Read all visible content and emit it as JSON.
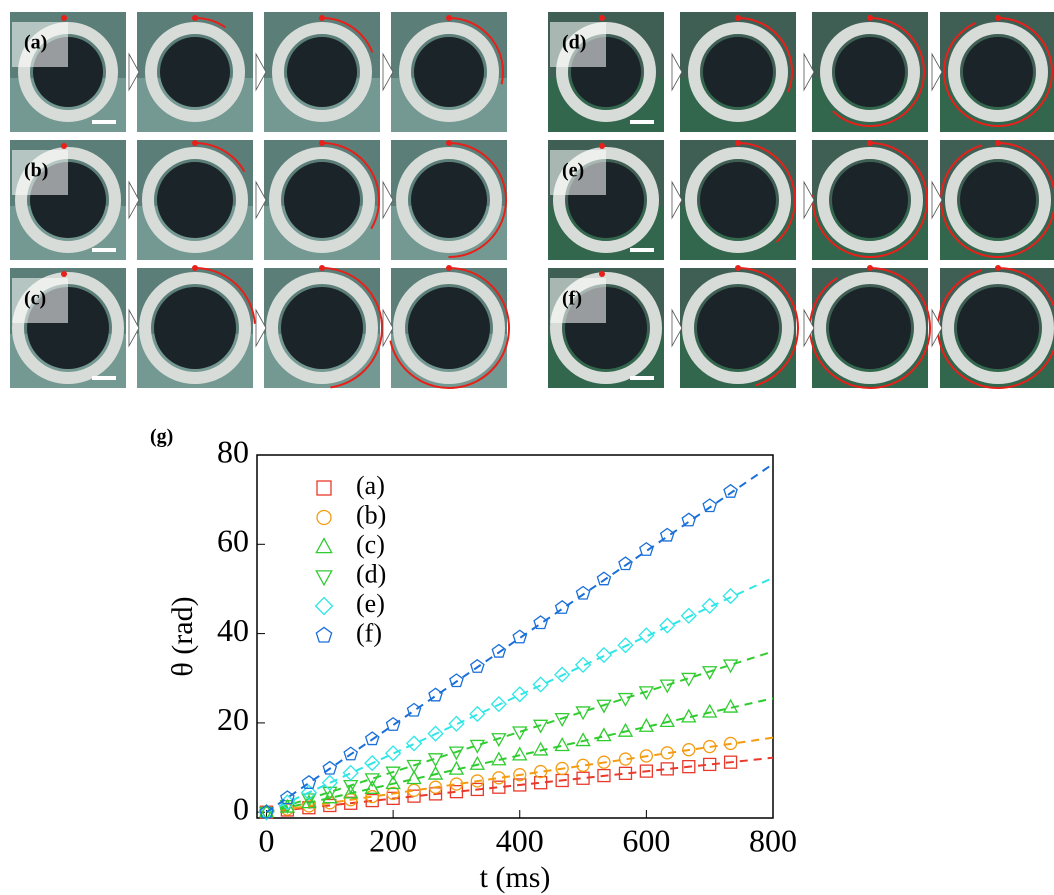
{
  "panels": {
    "labels": [
      "(a)",
      "(b)",
      "(c)",
      "(d)",
      "(e)",
      "(f)"
    ]
  },
  "chart_data": {
    "type": "scatter",
    "label": "(g)",
    "xlabel": "t (ms)",
    "ylabel": "θ (rad)",
    "xlim": [
      -15,
      800
    ],
    "ylim": [
      -1.3,
      80
    ],
    "xticks": [
      0,
      200,
      400,
      600,
      800
    ],
    "yticks": [
      0,
      20,
      40,
      60,
      80
    ],
    "x": [
      0,
      33,
      67,
      100,
      133,
      167,
      200,
      233,
      267,
      300,
      333,
      367,
      400,
      433,
      467,
      500,
      533,
      567,
      600,
      633,
      667,
      700,
      733
    ],
    "series": [
      {
        "name": "(a)",
        "color": "#e8392b",
        "marker": "square",
        "values": [
          0,
          0.5,
          1,
          1.5,
          2,
          2.6,
          3.1,
          3.6,
          4.1,
          4.6,
          5.1,
          5.6,
          6.1,
          6.6,
          7.1,
          7.6,
          8.2,
          8.7,
          9.2,
          9.7,
          10.2,
          10.7,
          11.2
        ],
        "fit_x": [
          0,
          800
        ],
        "fit_values": [
          0,
          12.2
        ]
      },
      {
        "name": "(b)",
        "color": "#f39c12",
        "marker": "circle",
        "values": [
          0,
          0.7,
          1.4,
          2.1,
          2.8,
          3.5,
          4.2,
          4.9,
          5.6,
          6.3,
          7,
          7.7,
          8.4,
          9.1,
          9.8,
          10.5,
          11.2,
          11.9,
          12.6,
          13.3,
          14,
          14.7,
          15.4
        ],
        "fit_x": [
          0,
          800
        ],
        "fit_values": [
          0,
          16.7
        ]
      },
      {
        "name": "(c)",
        "color": "#2ecc2e",
        "marker": "triangle-up",
        "values": [
          0,
          1.1,
          2.1,
          3.2,
          4.3,
          5.3,
          6.4,
          7.5,
          8.5,
          9.6,
          10.7,
          11.7,
          12.8,
          13.9,
          14.9,
          16,
          17.1,
          18.1,
          19.2,
          20.3,
          21.3,
          22.4,
          23.5
        ],
        "fit_x": [
          0,
          800
        ],
        "fit_values": [
          0,
          25.5
        ]
      },
      {
        "name": "(d)",
        "color": "#33cc33",
        "marker": "triangle-down",
        "values": [
          0,
          1.5,
          3,
          4.5,
          6,
          7.5,
          9,
          10.5,
          12,
          13.5,
          15,
          16.5,
          18,
          19.5,
          21,
          22.5,
          24,
          25.5,
          27,
          28.5,
          30,
          31.5,
          33
        ],
        "fit_x": [
          0,
          800
        ],
        "fit_values": [
          0,
          36
        ]
      },
      {
        "name": "(e)",
        "color": "#2ee6e6",
        "marker": "diamond",
        "values": [
          0,
          2.2,
          4.4,
          6.6,
          8.8,
          11,
          13.2,
          15.4,
          17.6,
          19.8,
          22,
          24.2,
          26.4,
          28.6,
          30.8,
          33,
          35.2,
          37.4,
          39.6,
          41.8,
          44,
          46.2,
          48.4
        ],
        "fit_x": [
          0,
          800
        ],
        "fit_values": [
          0,
          52.5
        ]
      },
      {
        "name": "(f)",
        "color": "#1a6fd9",
        "marker": "pentagon",
        "values": [
          0,
          3.2,
          6.6,
          9.8,
          13,
          16.4,
          19.6,
          22.8,
          26.2,
          29.4,
          32.6,
          36,
          39.2,
          42.4,
          45.8,
          49,
          52.2,
          55.6,
          58.8,
          62,
          65.4,
          68.6,
          71.8
        ],
        "fit_x": [
          0,
          800
        ],
        "fit_values": [
          0,
          78
        ]
      }
    ]
  }
}
